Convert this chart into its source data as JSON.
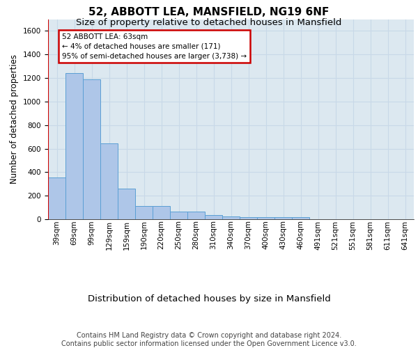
{
  "title1": "52, ABBOTT LEA, MANSFIELD, NG19 6NF",
  "title2": "Size of property relative to detached houses in Mansfield",
  "xlabel": "Distribution of detached houses by size in Mansfield",
  "ylabel": "Number of detached properties",
  "categories": [
    "39sqm",
    "69sqm",
    "99sqm",
    "129sqm",
    "159sqm",
    "190sqm",
    "220sqm",
    "250sqm",
    "280sqm",
    "310sqm",
    "340sqm",
    "370sqm",
    "400sqm",
    "430sqm",
    "460sqm",
    "491sqm",
    "521sqm",
    "551sqm",
    "581sqm",
    "611sqm",
    "641sqm"
  ],
  "values": [
    355,
    1240,
    1190,
    645,
    260,
    113,
    113,
    65,
    65,
    35,
    22,
    20,
    20,
    15,
    15,
    0,
    0,
    0,
    0,
    0,
    0
  ],
  "bar_color": "#aec6e8",
  "bar_edge_color": "#5a9fd4",
  "grid_color": "#c8d8e8",
  "background_color": "#dce8f0",
  "annotation_text": "52 ABBOTT LEA: 63sqm\n← 4% of detached houses are smaller (171)\n95% of semi-detached houses are larger (3,738) →",
  "annotation_box_facecolor": "#ffffff",
  "annotation_border_color": "#cc0000",
  "ylim": [
    0,
    1700
  ],
  "yticks": [
    0,
    200,
    400,
    600,
    800,
    1000,
    1200,
    1400,
    1600
  ],
  "footer_text": "Contains HM Land Registry data © Crown copyright and database right 2024.\nContains public sector information licensed under the Open Government Licence v3.0.",
  "title1_fontsize": 11,
  "title2_fontsize": 9.5,
  "xlabel_fontsize": 9.5,
  "ylabel_fontsize": 8.5,
  "tick_fontsize": 7.5,
  "footer_fontsize": 7,
  "ann_fontsize": 7.5,
  "marker_color": "#cc0000"
}
